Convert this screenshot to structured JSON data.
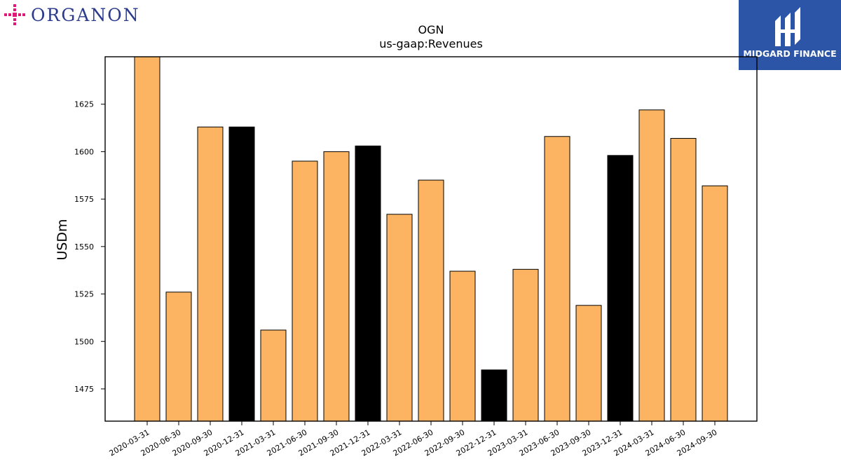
{
  "logos": {
    "left_brand": "ORGANON",
    "right_brand": "MIDGARD FINANCE"
  },
  "chart_data": {
    "type": "bar",
    "title": "OGN",
    "subtitle": "us-gaap:Revenues",
    "xlabel": "",
    "ylabel": "USDm",
    "ylim": [
      1458,
      1650
    ],
    "yticks": [
      1475,
      1500,
      1525,
      1550,
      1575,
      1600,
      1625
    ],
    "grid": false,
    "colors": {
      "default": "#fdb462",
      "highlight": "#000000",
      "edge": "#000000"
    },
    "categories": [
      "2020-03-31",
      "2020-06-30",
      "2020-09-30",
      "2020-12-31",
      "2021-03-31",
      "2021-06-30",
      "2021-09-30",
      "2021-12-31",
      "2022-03-31",
      "2022-06-30",
      "2022-09-30",
      "2022-12-31",
      "2023-03-31",
      "2023-06-30",
      "2023-09-30",
      "2023-12-31",
      "2024-03-31",
      "2024-06-30",
      "2024-09-30"
    ],
    "values": [
      1650,
      1526,
      1613,
      1613,
      1506,
      1595,
      1600,
      1603,
      1567,
      1585,
      1537,
      1485,
      1538,
      1608,
      1519,
      1598,
      1622,
      1607,
      1582
    ],
    "highlighted": [
      false,
      false,
      false,
      true,
      false,
      false,
      false,
      true,
      false,
      false,
      false,
      true,
      false,
      false,
      false,
      true,
      false,
      false,
      false
    ]
  }
}
